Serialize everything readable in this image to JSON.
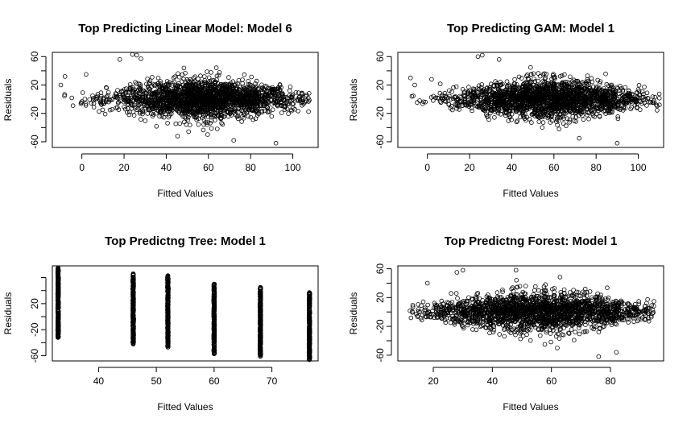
{
  "chart_data": [
    {
      "type": "scatter",
      "title": "Top Predicting Linear Model: Model 6",
      "xlabel": "Fitted Values",
      "ylabel": "Residuals",
      "xlim": [
        -14,
        112
      ],
      "ylim": [
        -68,
        66
      ],
      "xticks": [
        0,
        20,
        40,
        60,
        80,
        100
      ],
      "yticks": [
        -60,
        -40,
        -20,
        0,
        20,
        40,
        60
      ],
      "ytick_labels": [
        "-60",
        "",
        "-20",
        "",
        "20",
        "",
        "60"
      ],
      "points": {
        "x_range": [
          -10,
          108
        ],
        "center": 58,
        "spread": 22,
        "count": 2000,
        "residual_sd": 15,
        "extremes": [
          [
            -10,
            20
          ],
          [
            -8,
            32
          ],
          [
            2,
            35
          ],
          [
            18,
            56
          ],
          [
            24,
            63
          ],
          [
            26,
            62
          ],
          [
            28,
            57
          ],
          [
            72,
            -58
          ],
          [
            92,
            -62
          ],
          [
            104,
            -5
          ]
        ]
      },
      "grid": false
    },
    {
      "type": "scatter",
      "title": "Top Predicting GAM: Model 1",
      "xlabel": "Fitted Values",
      "ylabel": "Residuals",
      "xlim": [
        -14,
        112
      ],
      "ylim": [
        -68,
        66
      ],
      "xticks": [
        0,
        20,
        40,
        60,
        80,
        100
      ],
      "yticks": [
        -60,
        -40,
        -20,
        0,
        20,
        40,
        60
      ],
      "ytick_labels": [
        "-60",
        "",
        "-20",
        "",
        "20",
        "",
        "60"
      ],
      "points": {
        "x_range": [
          -8,
          110
        ],
        "center": 58,
        "spread": 22,
        "count": 2000,
        "residual_sd": 15,
        "extremes": [
          [
            -8,
            30
          ],
          [
            -6,
            20
          ],
          [
            2,
            28
          ],
          [
            24,
            60
          ],
          [
            26,
            62
          ],
          [
            34,
            56
          ],
          [
            72,
            -55
          ],
          [
            90,
            -62
          ],
          [
            110,
            -8
          ]
        ]
      },
      "grid": false
    },
    {
      "type": "scatter",
      "title": "Top Predictng Tree: Model 1",
      "xlabel": "Fitted Values",
      "ylabel": "Residuals",
      "xlim": [
        32,
        78
      ],
      "ylim": [
        -68,
        78
      ],
      "xticks": [
        40,
        50,
        60,
        70
      ],
      "yticks": [
        -60,
        -40,
        -20,
        0,
        20,
        40,
        60
      ],
      "ytick_labels": [
        "-60",
        "",
        "-20",
        "",
        "20",
        "",
        ""
      ],
      "columns": [
        {
          "x": 33,
          "ymin": -32,
          "ymax": 75
        },
        {
          "x": 46,
          "ymin": -42,
          "ymax": 66
        },
        {
          "x": 52,
          "ymin": -47,
          "ymax": 63
        },
        {
          "x": 60,
          "ymin": -57,
          "ymax": 50
        },
        {
          "x": 68,
          "ymin": -61,
          "ymax": 45
        },
        {
          "x": 76.5,
          "ymin": -67,
          "ymax": 37
        }
      ],
      "grid": false
    },
    {
      "type": "scatter",
      "title": "Top Predictng Forest: Model 1",
      "xlabel": "Fitted Values",
      "ylabel": "Residuals",
      "xlim": [
        8,
        98
      ],
      "ylim": [
        -68,
        64
      ],
      "xticks": [
        20,
        40,
        60,
        80
      ],
      "yticks": [
        -60,
        -40,
        -20,
        0,
        20,
        40,
        60
      ],
      "ytick_labels": [
        "-60",
        "",
        "-20",
        "",
        "20",
        "",
        "60"
      ],
      "points": {
        "x_range": [
          12,
          95
        ],
        "center": 56,
        "spread": 19,
        "count": 2000,
        "residual_sd": 15,
        "extremes": [
          [
            18,
            40
          ],
          [
            28,
            55
          ],
          [
            30,
            58
          ],
          [
            48,
            58
          ],
          [
            62,
            -50
          ],
          [
            76,
            -62
          ],
          [
            82,
            -56
          ]
        ]
      },
      "grid": false
    }
  ]
}
